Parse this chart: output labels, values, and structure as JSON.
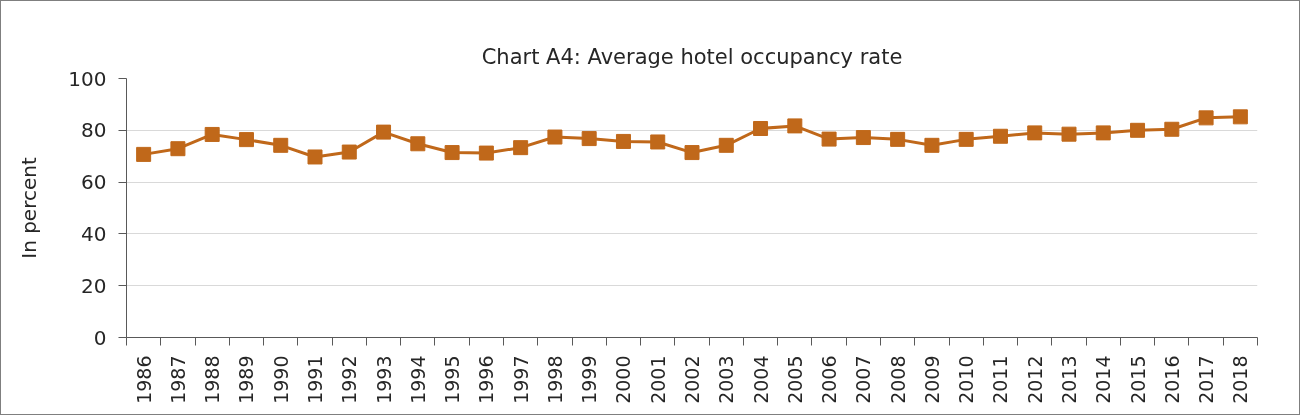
{
  "chart_data": {
    "type": "line",
    "title": "Chart A4: Average hotel occupancy rate",
    "ylabel": "In percent",
    "categories": [
      "1986",
      "1987",
      "1988",
      "1989",
      "1990",
      "1991",
      "1992",
      "1993",
      "1994",
      "1995",
      "1996",
      "1997",
      "1998",
      "1999",
      "2000",
      "2001",
      "2002",
      "2003",
      "2004",
      "2005",
      "2006",
      "2007",
      "2008",
      "2009",
      "2010",
      "2011",
      "2012",
      "2013",
      "2014",
      "2015",
      "2016",
      "2017",
      "2018"
    ],
    "series": [
      {
        "color": "#c0681a",
        "values": [
          70.7,
          72.9,
          78.4,
          76.4,
          74.2,
          69.7,
          71.6,
          79.3,
          74.8,
          71.4,
          71.2,
          73.3,
          77.4,
          76.8,
          75.7,
          75.5,
          71.4,
          74.2,
          80.7,
          81.7,
          76.6,
          77.2,
          76.5,
          74.2,
          76.5,
          77.7,
          79.0,
          78.5,
          79.0,
          80.0,
          80.4,
          84.8,
          85.2
        ]
      }
    ],
    "ylim": [
      0,
      100
    ],
    "yticks": [
      0,
      20,
      40,
      60,
      80,
      100
    ],
    "grid": "y",
    "marker": "square",
    "line_style": "solid"
  }
}
